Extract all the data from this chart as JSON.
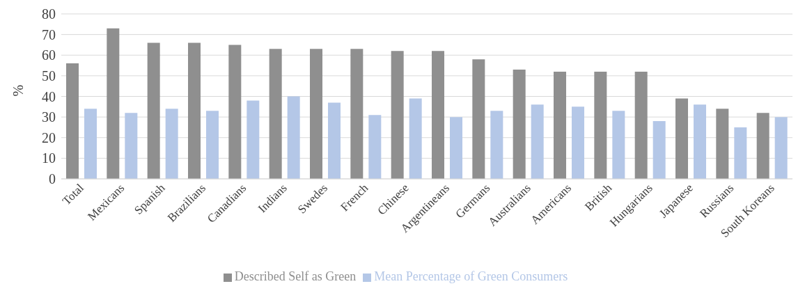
{
  "chart_data": {
    "type": "bar",
    "ylabel": "%",
    "categories": [
      "Total",
      "Mexicans",
      "Spanish",
      "Brazilians",
      "Canadians",
      "Indians",
      "Swedes",
      "French",
      "Chinese",
      "Argentineans",
      "Germans",
      "Australians",
      "Americans",
      "British",
      "Hungarians",
      "Japanese",
      "Russians",
      "South Koreans"
    ],
    "series": [
      {
        "name": "Described Self as Green",
        "color": "#8f8f8f",
        "values": [
          56,
          73,
          66,
          66,
          65,
          63,
          63,
          63,
          62,
          62,
          58,
          53,
          52,
          52,
          52,
          39,
          34,
          32
        ]
      },
      {
        "name": "Mean Percentage of Green Consumers",
        "color": "#b4c7e7",
        "values": [
          34,
          32,
          34,
          33,
          38,
          40,
          37,
          31,
          39,
          30,
          33,
          36,
          35,
          33,
          28,
          36,
          25,
          30
        ]
      }
    ],
    "ylim": [
      0,
      80
    ],
    "yticks": [
      0,
      10,
      20,
      30,
      40,
      50,
      60,
      70,
      80
    ],
    "grid": "y",
    "legend": "bottom"
  }
}
